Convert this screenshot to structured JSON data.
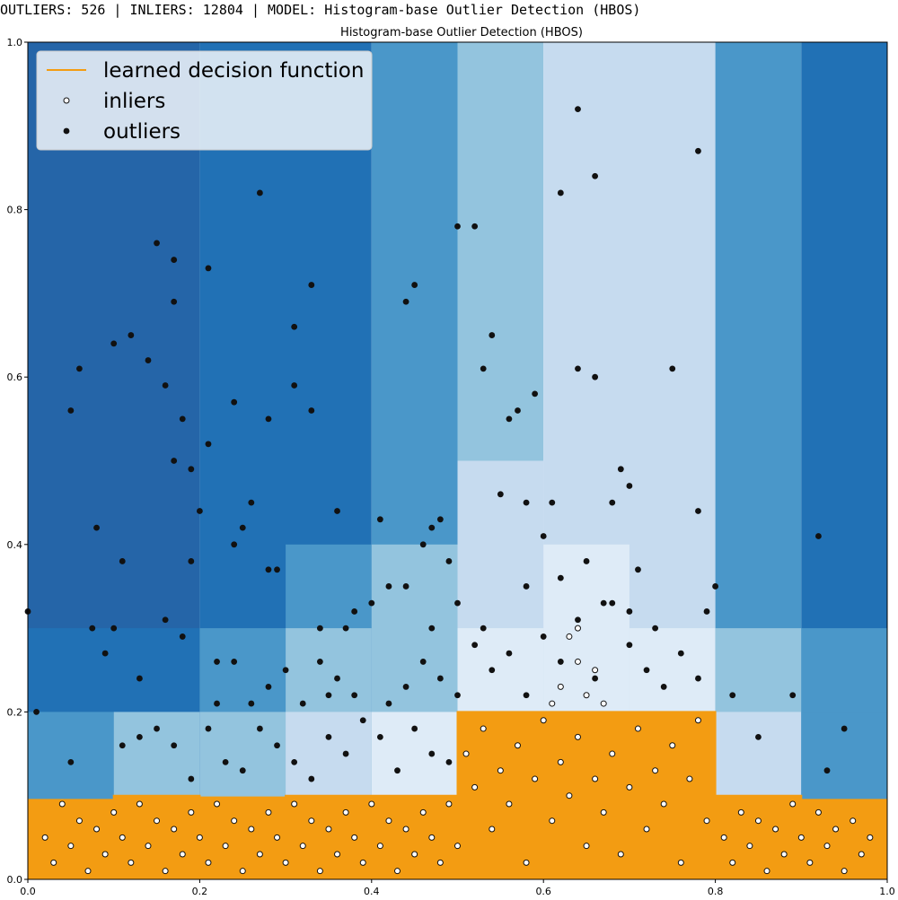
{
  "status": {
    "text": "OUTLIERS: 526 | INLIERS: 12804 | MODEL: Histogram-base Outlier Detection (HBOS)"
  },
  "colors": {
    "level_darkest": "#2565a8",
    "level_dark": "#2171b5",
    "level_mid": "#4a97c9",
    "level_light": "#93c4de",
    "level_lighter": "#c6dbef",
    "level_lightest": "#deebf7",
    "inlier_region": "#f39c12",
    "decision_line": "#f39c12",
    "outlier_point": "#111111",
    "inlier_point_fill": "#ffffff",
    "inlier_point_edge": "#111111"
  },
  "chart_data": {
    "type": "scatter",
    "title": "Histogram-base Outlier Detection (HBOS)",
    "xlabel": "",
    "ylabel": "",
    "xlim": [
      0.0,
      1.0
    ],
    "ylim": [
      0.0,
      1.0
    ],
    "x_ticks": [
      "0.0",
      "0.2",
      "0.4",
      "0.6",
      "0.8",
      "1.0"
    ],
    "y_ticks": [
      "0.0",
      "0.2",
      "0.4",
      "0.6",
      "0.8",
      "1.0"
    ],
    "legend": {
      "position": "top-left",
      "entries": [
        "learned decision function",
        "inliers",
        "outliers"
      ]
    },
    "decision_regions": [
      {
        "x": [
          0.0,
          0.2
        ],
        "y": [
          0.0,
          1.0
        ],
        "level": "level_darkest"
      },
      {
        "x": [
          0.2,
          0.4
        ],
        "y": [
          0.0,
          1.0
        ],
        "level": "level_dark"
      },
      {
        "x": [
          0.4,
          0.5
        ],
        "y": [
          0.0,
          1.0
        ],
        "level": "level_mid"
      },
      {
        "x": [
          0.5,
          0.6
        ],
        "y": [
          0.0,
          1.0
        ],
        "level": "level_light"
      },
      {
        "x": [
          0.6,
          0.8
        ],
        "y": [
          0.0,
          1.0
        ],
        "level": "level_lighter"
      },
      {
        "x": [
          0.8,
          0.9
        ],
        "y": [
          0.0,
          1.0
        ],
        "level": "level_mid"
      },
      {
        "x": [
          0.9,
          1.0
        ],
        "y": [
          0.0,
          1.0
        ],
        "level": "level_dark"
      },
      {
        "x": [
          0.0,
          0.2
        ],
        "y": [
          0.0,
          0.3
        ],
        "level": "level_dark"
      },
      {
        "x": [
          0.0,
          0.1
        ],
        "y": [
          0.0,
          0.2
        ],
        "level": "level_mid"
      },
      {
        "x": [
          0.1,
          0.2
        ],
        "y": [
          0.0,
          0.2
        ],
        "level": "level_light"
      },
      {
        "x": [
          0.2,
          0.3
        ],
        "y": [
          0.0,
          0.3
        ],
        "level": "level_mid"
      },
      {
        "x": [
          0.2,
          0.3
        ],
        "y": [
          0.0,
          0.2
        ],
        "level": "level_light"
      },
      {
        "x": [
          0.3,
          0.4
        ],
        "y": [
          0.0,
          0.4
        ],
        "level": "level_mid"
      },
      {
        "x": [
          0.3,
          0.4
        ],
        "y": [
          0.0,
          0.3
        ],
        "level": "level_light"
      },
      {
        "x": [
          0.3,
          0.4
        ],
        "y": [
          0.0,
          0.2
        ],
        "level": "level_lighter"
      },
      {
        "x": [
          0.4,
          0.5
        ],
        "y": [
          0.0,
          0.4
        ],
        "level": "level_light"
      },
      {
        "x": [
          0.4,
          0.5
        ],
        "y": [
          0.0,
          0.2
        ],
        "level": "level_lightest"
      },
      {
        "x": [
          0.5,
          0.6
        ],
        "y": [
          0.0,
          0.5
        ],
        "level": "level_lighter"
      },
      {
        "x": [
          0.5,
          0.6
        ],
        "y": [
          0.0,
          0.3
        ],
        "level": "level_lightest"
      },
      {
        "x": [
          0.6,
          0.7
        ],
        "y": [
          0.0,
          0.4
        ],
        "level": "level_lightest"
      },
      {
        "x": [
          0.7,
          0.8
        ],
        "y": [
          0.0,
          0.3
        ],
        "level": "level_lightest"
      },
      {
        "x": [
          0.8,
          0.9
        ],
        "y": [
          0.0,
          0.3
        ],
        "level": "level_light"
      },
      {
        "x": [
          0.8,
          0.9
        ],
        "y": [
          0.0,
          0.2
        ],
        "level": "level_lighter"
      },
      {
        "x": [
          0.9,
          1.0
        ],
        "y": [
          0.0,
          0.3
        ],
        "level": "level_mid"
      },
      {
        "x": [
          0.9,
          1.0
        ],
        "y": [
          0.0,
          0.2
        ],
        "level": "level_mid"
      }
    ],
    "inlier_region": [
      [
        0.0,
        0.0
      ],
      [
        0.0,
        0.095
      ],
      [
        0.1,
        0.095
      ],
      [
        0.1,
        0.1
      ],
      [
        0.2,
        0.1
      ],
      [
        0.2,
        0.098
      ],
      [
        0.3,
        0.098
      ],
      [
        0.3,
        0.1
      ],
      [
        0.5,
        0.1
      ],
      [
        0.5,
        0.2
      ],
      [
        0.8,
        0.2
      ],
      [
        0.8,
        0.1
      ],
      [
        0.9,
        0.1
      ],
      [
        0.9,
        0.095
      ],
      [
        1.0,
        0.095
      ],
      [
        1.0,
        0.0
      ]
    ],
    "outliers": [
      [
        0.0,
        0.32
      ],
      [
        0.01,
        0.2
      ],
      [
        0.05,
        0.14
      ],
      [
        0.05,
        0.56
      ],
      [
        0.06,
        0.61
      ],
      [
        0.075,
        0.3
      ],
      [
        0.08,
        0.42
      ],
      [
        0.09,
        0.27
      ],
      [
        0.1,
        0.3
      ],
      [
        0.1,
        0.64
      ],
      [
        0.11,
        0.38
      ],
      [
        0.12,
        0.65
      ],
      [
        0.13,
        0.24
      ],
      [
        0.14,
        0.62
      ],
      [
        0.15,
        0.76
      ],
      [
        0.16,
        0.59
      ],
      [
        0.16,
        0.31
      ],
      [
        0.17,
        0.74
      ],
      [
        0.17,
        0.69
      ],
      [
        0.17,
        0.5
      ],
      [
        0.18,
        0.29
      ],
      [
        0.18,
        0.55
      ],
      [
        0.19,
        0.49
      ],
      [
        0.19,
        0.38
      ],
      [
        0.2,
        0.44
      ],
      [
        0.21,
        0.73
      ],
      [
        0.21,
        0.52
      ],
      [
        0.22,
        0.26
      ],
      [
        0.24,
        0.57
      ],
      [
        0.24,
        0.4
      ],
      [
        0.25,
        0.42
      ],
      [
        0.26,
        0.45
      ],
      [
        0.27,
        0.82
      ],
      [
        0.28,
        0.55
      ],
      [
        0.28,
        0.37
      ],
      [
        0.29,
        0.37
      ],
      [
        0.3,
        0.25
      ],
      [
        0.31,
        0.66
      ],
      [
        0.31,
        0.59
      ],
      [
        0.33,
        0.71
      ],
      [
        0.33,
        0.56
      ],
      [
        0.34,
        0.3
      ],
      [
        0.35,
        0.22
      ],
      [
        0.36,
        0.44
      ],
      [
        0.37,
        0.3
      ],
      [
        0.38,
        0.32
      ],
      [
        0.4,
        0.33
      ],
      [
        0.41,
        0.43
      ],
      [
        0.42,
        0.35
      ],
      [
        0.44,
        0.69
      ],
      [
        0.45,
        0.71
      ],
      [
        0.46,
        0.4
      ],
      [
        0.47,
        0.42
      ],
      [
        0.48,
        0.43
      ],
      [
        0.49,
        0.38
      ],
      [
        0.5,
        0.78
      ],
      [
        0.52,
        0.78
      ],
      [
        0.53,
        0.61
      ],
      [
        0.54,
        0.65
      ],
      [
        0.55,
        0.46
      ],
      [
        0.56,
        0.55
      ],
      [
        0.57,
        0.56
      ],
      [
        0.58,
        0.45
      ],
      [
        0.59,
        0.58
      ],
      [
        0.6,
        0.41
      ],
      [
        0.61,
        0.45
      ],
      [
        0.62,
        0.82
      ],
      [
        0.64,
        0.92
      ],
      [
        0.64,
        0.61
      ],
      [
        0.66,
        0.84
      ],
      [
        0.66,
        0.6
      ],
      [
        0.68,
        0.45
      ],
      [
        0.69,
        0.49
      ],
      [
        0.7,
        0.47
      ],
      [
        0.71,
        0.37
      ],
      [
        0.75,
        0.61
      ],
      [
        0.78,
        0.87
      ],
      [
        0.78,
        0.44
      ],
      [
        0.79,
        0.32
      ],
      [
        0.8,
        0.35
      ],
      [
        0.82,
        0.22
      ],
      [
        0.85,
        0.17
      ],
      [
        0.89,
        0.22
      ],
      [
        0.92,
        0.41
      ],
      [
        0.93,
        0.13
      ],
      [
        0.95,
        0.18
      ],
      [
        0.11,
        0.16
      ],
      [
        0.13,
        0.17
      ],
      [
        0.15,
        0.18
      ],
      [
        0.17,
        0.16
      ],
      [
        0.19,
        0.12
      ],
      [
        0.21,
        0.18
      ],
      [
        0.23,
        0.14
      ],
      [
        0.25,
        0.13
      ],
      [
        0.27,
        0.18
      ],
      [
        0.29,
        0.16
      ],
      [
        0.31,
        0.14
      ],
      [
        0.33,
        0.12
      ],
      [
        0.35,
        0.17
      ],
      [
        0.37,
        0.15
      ],
      [
        0.39,
        0.19
      ],
      [
        0.41,
        0.17
      ],
      [
        0.43,
        0.13
      ],
      [
        0.45,
        0.18
      ],
      [
        0.47,
        0.15
      ],
      [
        0.49,
        0.14
      ],
      [
        0.52,
        0.28
      ],
      [
        0.54,
        0.25
      ],
      [
        0.56,
        0.27
      ],
      [
        0.58,
        0.22
      ],
      [
        0.6,
        0.29
      ],
      [
        0.62,
        0.26
      ],
      [
        0.64,
        0.31
      ],
      [
        0.66,
        0.24
      ],
      [
        0.68,
        0.33
      ],
      [
        0.7,
        0.28
      ],
      [
        0.72,
        0.25
      ],
      [
        0.74,
        0.23
      ],
      [
        0.76,
        0.27
      ],
      [
        0.78,
        0.24
      ],
      [
        0.42,
        0.21
      ],
      [
        0.44,
        0.23
      ],
      [
        0.46,
        0.26
      ],
      [
        0.48,
        0.24
      ],
      [
        0.5,
        0.22
      ],
      [
        0.36,
        0.24
      ],
      [
        0.38,
        0.22
      ],
      [
        0.34,
        0.26
      ],
      [
        0.32,
        0.21
      ],
      [
        0.28,
        0.23
      ],
      [
        0.26,
        0.21
      ],
      [
        0.24,
        0.26
      ],
      [
        0.22,
        0.21
      ],
      [
        0.58,
        0.35
      ],
      [
        0.62,
        0.36
      ],
      [
        0.65,
        0.38
      ],
      [
        0.67,
        0.33
      ],
      [
        0.7,
        0.32
      ],
      [
        0.73,
        0.3
      ],
      [
        0.44,
        0.35
      ],
      [
        0.47,
        0.3
      ],
      [
        0.5,
        0.33
      ],
      [
        0.53,
        0.3
      ]
    ],
    "inliers": [
      [
        0.02,
        0.05
      ],
      [
        0.03,
        0.02
      ],
      [
        0.04,
        0.09
      ],
      [
        0.05,
        0.04
      ],
      [
        0.06,
        0.07
      ],
      [
        0.07,
        0.01
      ],
      [
        0.08,
        0.06
      ],
      [
        0.09,
        0.03
      ],
      [
        0.1,
        0.08
      ],
      [
        0.11,
        0.05
      ],
      [
        0.12,
        0.02
      ],
      [
        0.13,
        0.09
      ],
      [
        0.14,
        0.04
      ],
      [
        0.15,
        0.07
      ],
      [
        0.16,
        0.01
      ],
      [
        0.17,
        0.06
      ],
      [
        0.18,
        0.03
      ],
      [
        0.19,
        0.08
      ],
      [
        0.2,
        0.05
      ],
      [
        0.21,
        0.02
      ],
      [
        0.22,
        0.09
      ],
      [
        0.23,
        0.04
      ],
      [
        0.24,
        0.07
      ],
      [
        0.25,
        0.01
      ],
      [
        0.26,
        0.06
      ],
      [
        0.27,
        0.03
      ],
      [
        0.28,
        0.08
      ],
      [
        0.29,
        0.05
      ],
      [
        0.3,
        0.02
      ],
      [
        0.31,
        0.09
      ],
      [
        0.32,
        0.04
      ],
      [
        0.33,
        0.07
      ],
      [
        0.34,
        0.01
      ],
      [
        0.35,
        0.06
      ],
      [
        0.36,
        0.03
      ],
      [
        0.37,
        0.08
      ],
      [
        0.38,
        0.05
      ],
      [
        0.39,
        0.02
      ],
      [
        0.4,
        0.09
      ],
      [
        0.41,
        0.04
      ],
      [
        0.42,
        0.07
      ],
      [
        0.43,
        0.01
      ],
      [
        0.44,
        0.06
      ],
      [
        0.45,
        0.03
      ],
      [
        0.46,
        0.08
      ],
      [
        0.47,
        0.05
      ],
      [
        0.48,
        0.02
      ],
      [
        0.49,
        0.09
      ],
      [
        0.5,
        0.04
      ],
      [
        0.51,
        0.15
      ],
      [
        0.52,
        0.11
      ],
      [
        0.53,
        0.18
      ],
      [
        0.54,
        0.06
      ],
      [
        0.55,
        0.13
      ],
      [
        0.56,
        0.09
      ],
      [
        0.57,
        0.16
      ],
      [
        0.58,
        0.02
      ],
      [
        0.59,
        0.12
      ],
      [
        0.6,
        0.19
      ],
      [
        0.61,
        0.07
      ],
      [
        0.62,
        0.14
      ],
      [
        0.63,
        0.1
      ],
      [
        0.64,
        0.17
      ],
      [
        0.65,
        0.04
      ],
      [
        0.66,
        0.12
      ],
      [
        0.67,
        0.08
      ],
      [
        0.68,
        0.15
      ],
      [
        0.69,
        0.03
      ],
      [
        0.7,
        0.11
      ],
      [
        0.71,
        0.18
      ],
      [
        0.72,
        0.06
      ],
      [
        0.73,
        0.13
      ],
      [
        0.74,
        0.09
      ],
      [
        0.75,
        0.16
      ],
      [
        0.76,
        0.02
      ],
      [
        0.77,
        0.12
      ],
      [
        0.78,
        0.19
      ],
      [
        0.79,
        0.07
      ],
      [
        0.81,
        0.05
      ],
      [
        0.82,
        0.02
      ],
      [
        0.83,
        0.08
      ],
      [
        0.84,
        0.04
      ],
      [
        0.85,
        0.07
      ],
      [
        0.86,
        0.01
      ],
      [
        0.87,
        0.06
      ],
      [
        0.88,
        0.03
      ],
      [
        0.89,
        0.09
      ],
      [
        0.9,
        0.05
      ],
      [
        0.91,
        0.02
      ],
      [
        0.92,
        0.08
      ],
      [
        0.93,
        0.04
      ],
      [
        0.94,
        0.06
      ],
      [
        0.95,
        0.01
      ],
      [
        0.96,
        0.07
      ],
      [
        0.97,
        0.03
      ],
      [
        0.98,
        0.05
      ],
      [
        0.64,
        0.26
      ],
      [
        0.65,
        0.22
      ],
      [
        0.66,
        0.25
      ],
      [
        0.63,
        0.29
      ],
      [
        0.62,
        0.23
      ],
      [
        0.61,
        0.21
      ],
      [
        0.67,
        0.21
      ],
      [
        0.64,
        0.3
      ]
    ]
  }
}
